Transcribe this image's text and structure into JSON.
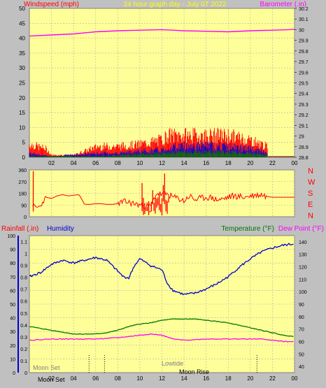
{
  "colors": {
    "background": "#c0c0c0",
    "plot": "#ffff99",
    "grid": "#aaaaaa",
    "wind": "#ff0000",
    "gust_fill": "#ff0000",
    "blue": "#0000cc",
    "green": "#007700",
    "magenta": "#ff00ff",
    "title": "#ffff00",
    "axis_text": "#000000"
  },
  "chart_data": [
    {
      "type": "line",
      "name": "wind-barometer",
      "title": "24 hour graph day - July 07 2022",
      "left_axis_label": "Windspeed (mph)",
      "right_axis_label": "Barometer (.in)",
      "left_ticks": [
        "0",
        "5",
        "10",
        "15",
        "20",
        "25",
        "30",
        "35",
        "40",
        "45",
        "50"
      ],
      "left_range": [
        0,
        50
      ],
      "right_ticks": [
        "28.8",
        "28.9",
        "29",
        "29.1",
        "29.2",
        "29.3",
        "29.4",
        "29.5",
        "29.6",
        "29.7",
        "29.8",
        "29.9",
        "30",
        "30.1",
        "30.2"
      ],
      "right_range": [
        28.8,
        30.2
      ],
      "x_ticks": [
        "02",
        "04",
        "06",
        "08",
        "10",
        "12",
        "14",
        "16",
        "18",
        "20",
        "22",
        "00"
      ],
      "x_range": [
        0,
        24
      ],
      "barometer_hours": [
        0,
        2,
        4,
        6,
        8,
        10,
        12,
        14,
        16,
        18,
        20,
        22,
        23.5,
        24
      ],
      "barometer_values": [
        29.94,
        29.95,
        29.96,
        29.98,
        29.99,
        29.995,
        30.0,
        29.99,
        29.985,
        29.98,
        29.99,
        29.995,
        30.0,
        30.005
      ],
      "wind_gust_envelope": {
        "hours": [
          0,
          1.5,
          2,
          4,
          6.2,
          7,
          8,
          10,
          11,
          12,
          12.5,
          13,
          14,
          15,
          16,
          17,
          18,
          19,
          20,
          21,
          21.5,
          21.6,
          24
        ],
        "values": [
          6,
          4,
          1,
          1,
          5,
          5,
          5,
          6,
          7,
          8,
          10,
          10,
          10,
          10,
          10,
          10,
          10,
          9,
          8,
          6,
          5,
          0,
          0
        ]
      },
      "wind_avg_envelope": {
        "hours": [
          0,
          2,
          6.2,
          8,
          10,
          12,
          13,
          14,
          16,
          18,
          19,
          20,
          21,
          21.5,
          21.6,
          24
        ],
        "values": [
          2,
          0.5,
          2,
          2,
          3,
          3.5,
          5,
          5.5,
          5.5,
          5,
          4.5,
          4,
          3,
          2,
          0,
          0
        ]
      },
      "wind_low_envelope": {
        "hours": [
          0,
          6.2,
          10,
          12,
          14,
          16,
          18,
          20,
          21.5,
          21.6,
          24
        ],
        "values": [
          0.5,
          0.5,
          1.5,
          2,
          2.5,
          2.5,
          2.5,
          2,
          1,
          0,
          0
        ]
      }
    },
    {
      "type": "line",
      "name": "wind-direction",
      "left_ticks": [
        "0",
        "90",
        "180",
        "270",
        "360"
      ],
      "left_range": [
        0,
        360
      ],
      "right_labels": [
        "N",
        "W",
        "S",
        "E",
        "N"
      ],
      "x_range": [
        0,
        24
      ],
      "direction_hours": [
        0.3,
        0.6,
        1,
        1.5,
        2,
        2.5,
        3,
        3.5,
        4,
        4.5,
        5,
        5.5,
        6,
        6.5,
        7,
        7.5,
        8,
        8.5,
        9,
        10,
        11,
        11.5,
        12,
        12.5,
        13,
        13.5,
        14,
        14.5,
        15,
        15.5,
        16,
        16.5,
        17,
        17.5,
        18,
        18.5,
        19,
        19.5,
        20,
        20.5,
        21,
        21.5,
        22,
        22.5,
        23,
        24
      ],
      "direction_values": [
        90,
        70,
        80,
        150,
        140,
        160,
        170,
        160,
        165,
        170,
        95,
        95,
        100,
        100,
        95,
        95,
        100,
        115,
        110,
        90,
        80,
        180,
        170,
        175,
        150,
        140,
        120,
        160,
        130,
        140,
        150,
        145,
        130,
        135,
        150,
        160,
        155,
        150,
        160,
        165,
        170,
        155,
        150,
        150,
        150,
        150
      ]
    },
    {
      "type": "line",
      "name": "rain-humidity-temperature",
      "rain_label": "Rainfall (.in)",
      "humidity_label": "Humidity",
      "temp_label": "Temperature (°F)",
      "dew_label": "Dew Point (°F)",
      "humidity_ticks": [
        "0",
        "10",
        "20",
        "30",
        "40",
        "50",
        "60",
        "70",
        "80",
        "90",
        "100"
      ],
      "humidity_range": [
        0,
        100
      ],
      "rain_ticks": [
        "0",
        "0.1",
        "0.2",
        "0.3",
        "0.4",
        "0.5",
        "0.6",
        "0.7",
        "0.8",
        "0.9",
        "1",
        "1.1"
      ],
      "rain_range": [
        0,
        1.15
      ],
      "temp_ticks": [
        "40",
        "50",
        "60",
        "70",
        "80",
        "90",
        "100",
        "110",
        "120",
        "130",
        "140"
      ],
      "temp_range": [
        35,
        145
      ],
      "x_ticks": [
        "02",
        "04",
        "06",
        "08",
        "10",
        "12",
        "14",
        "16",
        "18",
        "20",
        "22",
        "00"
      ],
      "x_range": [
        0,
        24
      ],
      "humidity_hours": [
        0,
        1,
        2,
        3,
        4,
        5,
        6,
        7,
        8,
        8.5,
        9,
        9.5,
        10,
        11,
        12,
        12.5,
        13,
        14,
        15,
        16,
        17,
        18,
        19,
        20,
        21,
        22,
        23,
        24
      ],
      "humidity_values": [
        70,
        73,
        79,
        82,
        80,
        82,
        84,
        82,
        74,
        70,
        69,
        78,
        83,
        78,
        75,
        65,
        60,
        57,
        58,
        61,
        65,
        70,
        77,
        83,
        88,
        91,
        93,
        94
      ],
      "temp_hours": [
        0,
        2,
        4,
        6,
        7,
        8,
        9,
        10,
        11,
        12,
        13,
        14,
        15,
        16,
        17,
        18,
        19,
        20,
        21,
        22,
        23,
        24
      ],
      "temp_values": [
        72,
        69,
        66,
        66,
        67,
        69,
        72,
        74,
        75,
        77,
        78,
        78,
        78,
        77,
        76,
        75,
        73,
        71,
        69,
        67,
        65,
        64
      ],
      "dew_hours": [
        0,
        2,
        4,
        6,
        8,
        10,
        11,
        12,
        13,
        14,
        16,
        18,
        20,
        21,
        22,
        23,
        24
      ],
      "dew_values": [
        61,
        62,
        62,
        62,
        63,
        65,
        66,
        65,
        62,
        61,
        62,
        62,
        62,
        62,
        61,
        60,
        60
      ],
      "rainfall_values": [
        0
      ],
      "tick_marks_hours": [
        5.4,
        6.8,
        20.6
      ],
      "annotations": {
        "moon_set": "Moon Set",
        "moon_set2": "Moon Set",
        "lowtide": "Lowtide",
        "moon_rise": "Moon Rise"
      }
    }
  ]
}
